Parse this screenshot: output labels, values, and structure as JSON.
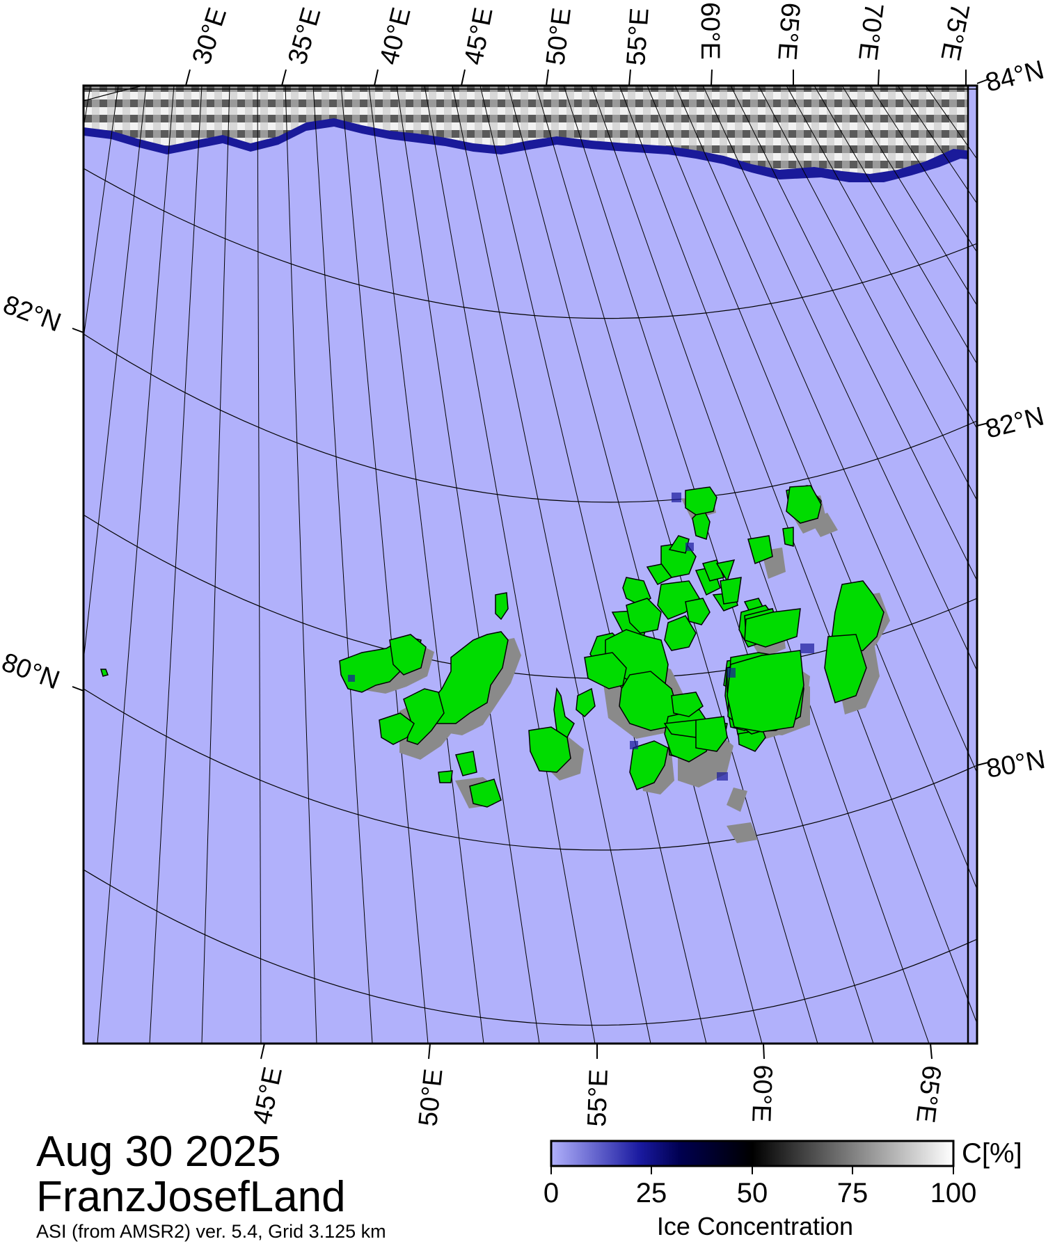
{
  "caption": {
    "date": "Aug 30 2025",
    "region": "FranzJosefLand",
    "source": "ASI (from AMSR2) ver. 5.4,  Grid 3.125 km"
  },
  "map": {
    "top_lon_labels": [
      "30°E",
      "35°E",
      "40°E",
      "45°E",
      "50°E",
      "55°E",
      "60°E",
      "65°E",
      "70°E",
      "75°E"
    ],
    "bottom_lon_labels": [
      "45°E",
      "50°E",
      "55°E",
      "60°E",
      "65°E"
    ],
    "left_lat_labels": [
      "82°N",
      "80°N"
    ],
    "right_lat_labels": [
      "84°N",
      "82°N",
      "80°N"
    ],
    "colors": {
      "open_water": "#b1b1fb",
      "land": "#00dc00",
      "land_shadow": "#8a8a8a",
      "ice_edge": "#1a1a9a",
      "graticule": "#000000"
    }
  },
  "colorbar": {
    "ticks": [
      "0",
      "25",
      "50",
      "75",
      "100"
    ],
    "unit": "C[%]",
    "title": "Ice Concentration",
    "stops": [
      "#b1b1fb",
      "#1a1aa0",
      "#000050",
      "#000000",
      "#808080",
      "#ffffff"
    ]
  }
}
